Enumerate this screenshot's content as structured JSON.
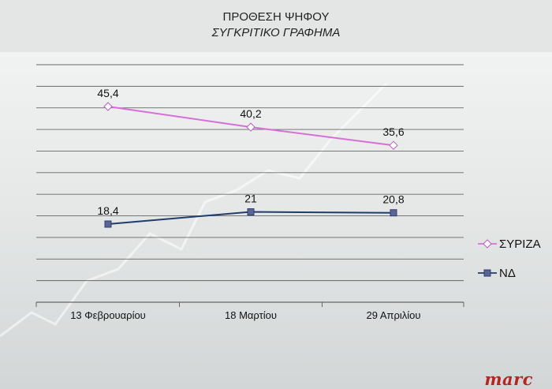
{
  "header": {
    "title": "ΠΡΟΘΕΣΗ ΨΗΦΟΥ",
    "subtitle": "ΣΥΓΚΡΙΤΙΚΟ ΓΡΑΦΗΜΑ"
  },
  "logo": {
    "text": "marc",
    "color": "#b52524"
  },
  "chart_data": {
    "type": "line",
    "title": "ΠΡΟΘΕΣΗ ΨΗΦΟΥ",
    "subtitle": "ΣΥΓΚΡΙΤΙΚΟ ΓΡΑΦΗΜΑ",
    "categories": [
      "13 Φεβρουαρίου",
      "18 Μαρτίου",
      "29 Απριλίου"
    ],
    "series": [
      {
        "name": "ΣΥΡΙΖΑ",
        "values": [
          45.4,
          40.2,
          35.6
        ],
        "labels": [
          "45,4",
          "40,2",
          "35,6"
        ],
        "color": "#d66fd6",
        "marker": "diamond"
      },
      {
        "name": "ΝΔ",
        "values": [
          18.4,
          21,
          20.8
        ],
        "labels": [
          "18,4",
          "21",
          "20,8"
        ],
        "color": "#1f3c6b",
        "marker": "square"
      }
    ],
    "ylim": [
      0,
      50
    ],
    "gridlines": true,
    "legend": "right",
    "xlabel": "",
    "ylabel": ""
  }
}
